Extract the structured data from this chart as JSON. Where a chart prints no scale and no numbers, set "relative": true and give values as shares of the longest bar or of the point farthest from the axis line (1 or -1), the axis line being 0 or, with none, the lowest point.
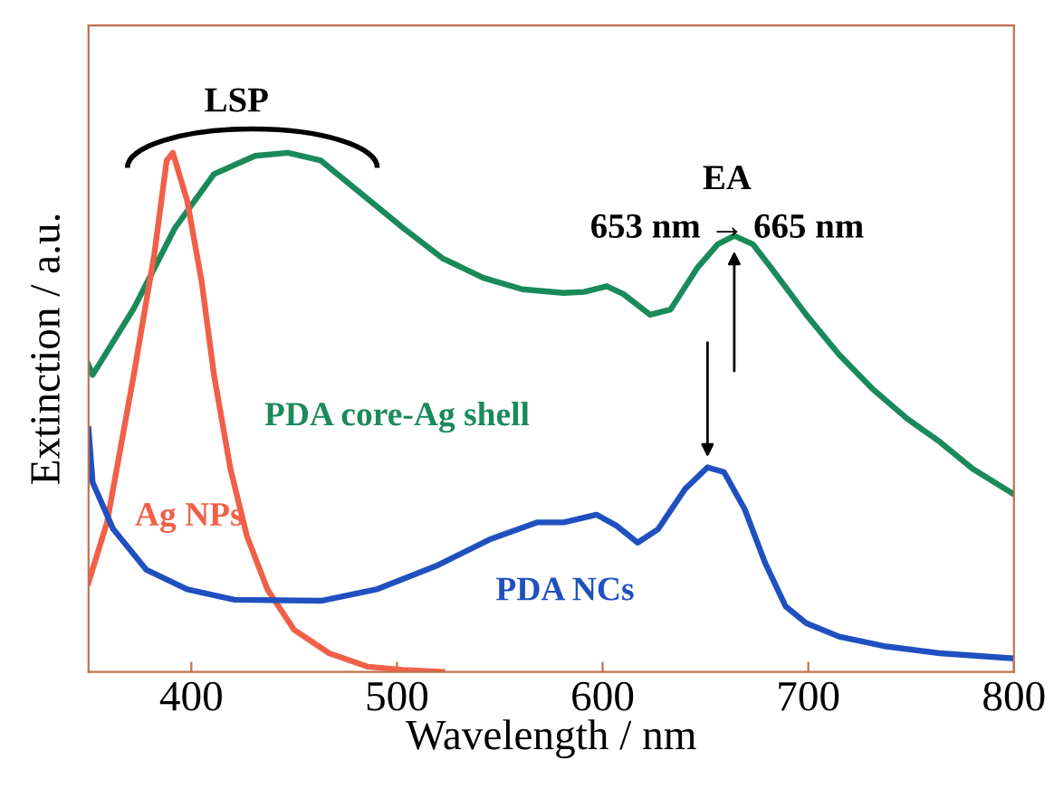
{
  "chart_data": {
    "type": "line",
    "xlabel": "Wavelength / nm",
    "ylabel": "Extinction / a.u.",
    "relative": true,
    "xlim": [
      350,
      800
    ],
    "xticks": [
      400,
      500,
      600,
      700,
      800
    ],
    "grid": false,
    "legend": false,
    "marker": "none",
    "line_style": "solid",
    "annotations": [
      "LSP",
      "EA",
      "653 nm → 665 nm"
    ],
    "series": [
      {
        "name": "PDA core-Ag shell",
        "color": "#1a8a5a",
        "x": [
          350,
          352,
          372,
          392,
          411,
          431,
          447,
          463,
          483,
          503,
          522,
          542,
          561,
          581,
          591,
          602,
          610,
          623,
          633,
          646,
          656,
          664,
          673,
          682,
          699,
          715,
          731,
          748,
          764,
          780,
          800
        ],
        "values": [
          0.591,
          0.572,
          0.7,
          0.855,
          0.959,
          0.994,
          1.0,
          0.985,
          0.92,
          0.855,
          0.797,
          0.759,
          0.737,
          0.73,
          0.732,
          0.743,
          0.728,
          0.688,
          0.698,
          0.778,
          0.824,
          0.84,
          0.824,
          0.778,
          0.688,
          0.611,
          0.546,
          0.488,
          0.443,
          0.391,
          0.342
        ]
      },
      {
        "name": "Ag NPs",
        "color": "#f06048",
        "x": [
          350,
          359,
          372,
          382,
          388,
          391,
          398,
          405,
          411,
          419,
          427,
          437,
          450,
          467,
          486,
          503,
          522
        ],
        "values": [
          0.172,
          0.288,
          0.572,
          0.805,
          0.985,
          1.0,
          0.907,
          0.752,
          0.572,
          0.391,
          0.262,
          0.159,
          0.081,
          0.036,
          0.01,
          0.004,
          0.0
        ]
      },
      {
        "name": "PDA NCs",
        "color": "#2050c0",
        "x": [
          350,
          352,
          362,
          378,
          398,
          421,
          463,
          490,
          519,
          545,
          568,
          581,
          597,
          607,
          617,
          627,
          640,
          651,
          659,
          669,
          679,
          689,
          699,
          715,
          738,
          764,
          800
        ],
        "values": [
          0.468,
          0.365,
          0.275,
          0.197,
          0.159,
          0.139,
          0.137,
          0.159,
          0.204,
          0.255,
          0.288,
          0.288,
          0.303,
          0.281,
          0.249,
          0.275,
          0.352,
          0.394,
          0.385,
          0.314,
          0.21,
          0.126,
          0.094,
          0.068,
          0.049,
          0.036,
          0.026
        ]
      }
    ]
  }
}
